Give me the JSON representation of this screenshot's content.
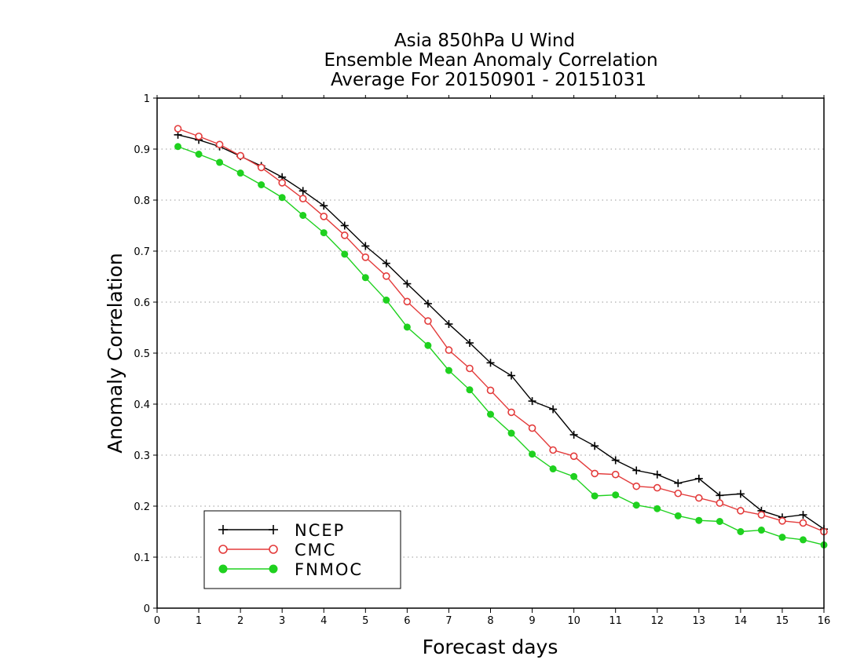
{
  "chart_data": {
    "type": "line",
    "title": [
      "Asia 850hPa U Wind",
      "Ensemble Mean Anomaly Correlation",
      "Average For 20150901 - 20151031"
    ],
    "xlabel": "Forecast days",
    "ylabel": "Anomaly Correlation",
    "xlim": [
      0,
      16
    ],
    "ylim": [
      0,
      1
    ],
    "xticks": [
      0,
      1,
      2,
      3,
      4,
      5,
      6,
      7,
      8,
      9,
      10,
      11,
      12,
      13,
      14,
      15,
      16
    ],
    "yticks": [
      0,
      0.1,
      0.2,
      0.3,
      0.4,
      0.5,
      0.6,
      0.7,
      0.8,
      0.9,
      1
    ],
    "ytick_labels": [
      "0",
      "0.1",
      "0.2",
      "0.3",
      "0.4",
      "0.5",
      "0.6",
      "0.7",
      "0.8",
      "0.9",
      "1"
    ],
    "grid": "horizontal dotted",
    "legend_position": "bottom-left",
    "x": [
      0.5,
      1,
      1.5,
      2,
      2.5,
      3,
      3.5,
      4,
      4.5,
      5,
      5.5,
      6,
      6.5,
      7,
      7.5,
      8,
      8.5,
      9,
      9.5,
      10,
      10.5,
      11,
      11.5,
      12,
      12.5,
      13,
      13.5,
      14,
      14.5,
      15,
      15.5,
      16
    ],
    "series": [
      {
        "name": "NCEP",
        "color": "#000000",
        "marker": "plus",
        "values": [
          0.928,
          0.918,
          0.905,
          0.886,
          0.867,
          0.845,
          0.818,
          0.789,
          0.75,
          0.71,
          0.676,
          0.636,
          0.597,
          0.557,
          0.52,
          0.481,
          0.456,
          0.406,
          0.39,
          0.34,
          0.318,
          0.29,
          0.27,
          0.262,
          0.245,
          0.254,
          0.221,
          0.224,
          0.191,
          0.178,
          0.183,
          0.155
        ]
      },
      {
        "name": "CMC",
        "color": "#e33b3b",
        "marker": "open-circle",
        "values": [
          0.94,
          0.925,
          0.909,
          0.887,
          0.864,
          0.834,
          0.803,
          0.768,
          0.731,
          0.688,
          0.651,
          0.601,
          0.563,
          0.506,
          0.47,
          0.427,
          0.384,
          0.353,
          0.31,
          0.298,
          0.264,
          0.262,
          0.239,
          0.236,
          0.225,
          0.216,
          0.206,
          0.191,
          0.183,
          0.171,
          0.167,
          0.15
        ]
      },
      {
        "name": "FNMOC",
        "color": "#1fd11f",
        "marker": "filled-circle",
        "values": [
          0.905,
          0.89,
          0.874,
          0.853,
          0.83,
          0.805,
          0.77,
          0.736,
          0.694,
          0.648,
          0.604,
          0.551,
          0.515,
          0.466,
          0.428,
          0.38,
          0.343,
          0.302,
          0.273,
          0.258,
          0.22,
          0.222,
          0.202,
          0.195,
          0.181,
          0.172,
          0.17,
          0.15,
          0.153,
          0.139,
          0.134,
          0.124
        ]
      }
    ]
  }
}
